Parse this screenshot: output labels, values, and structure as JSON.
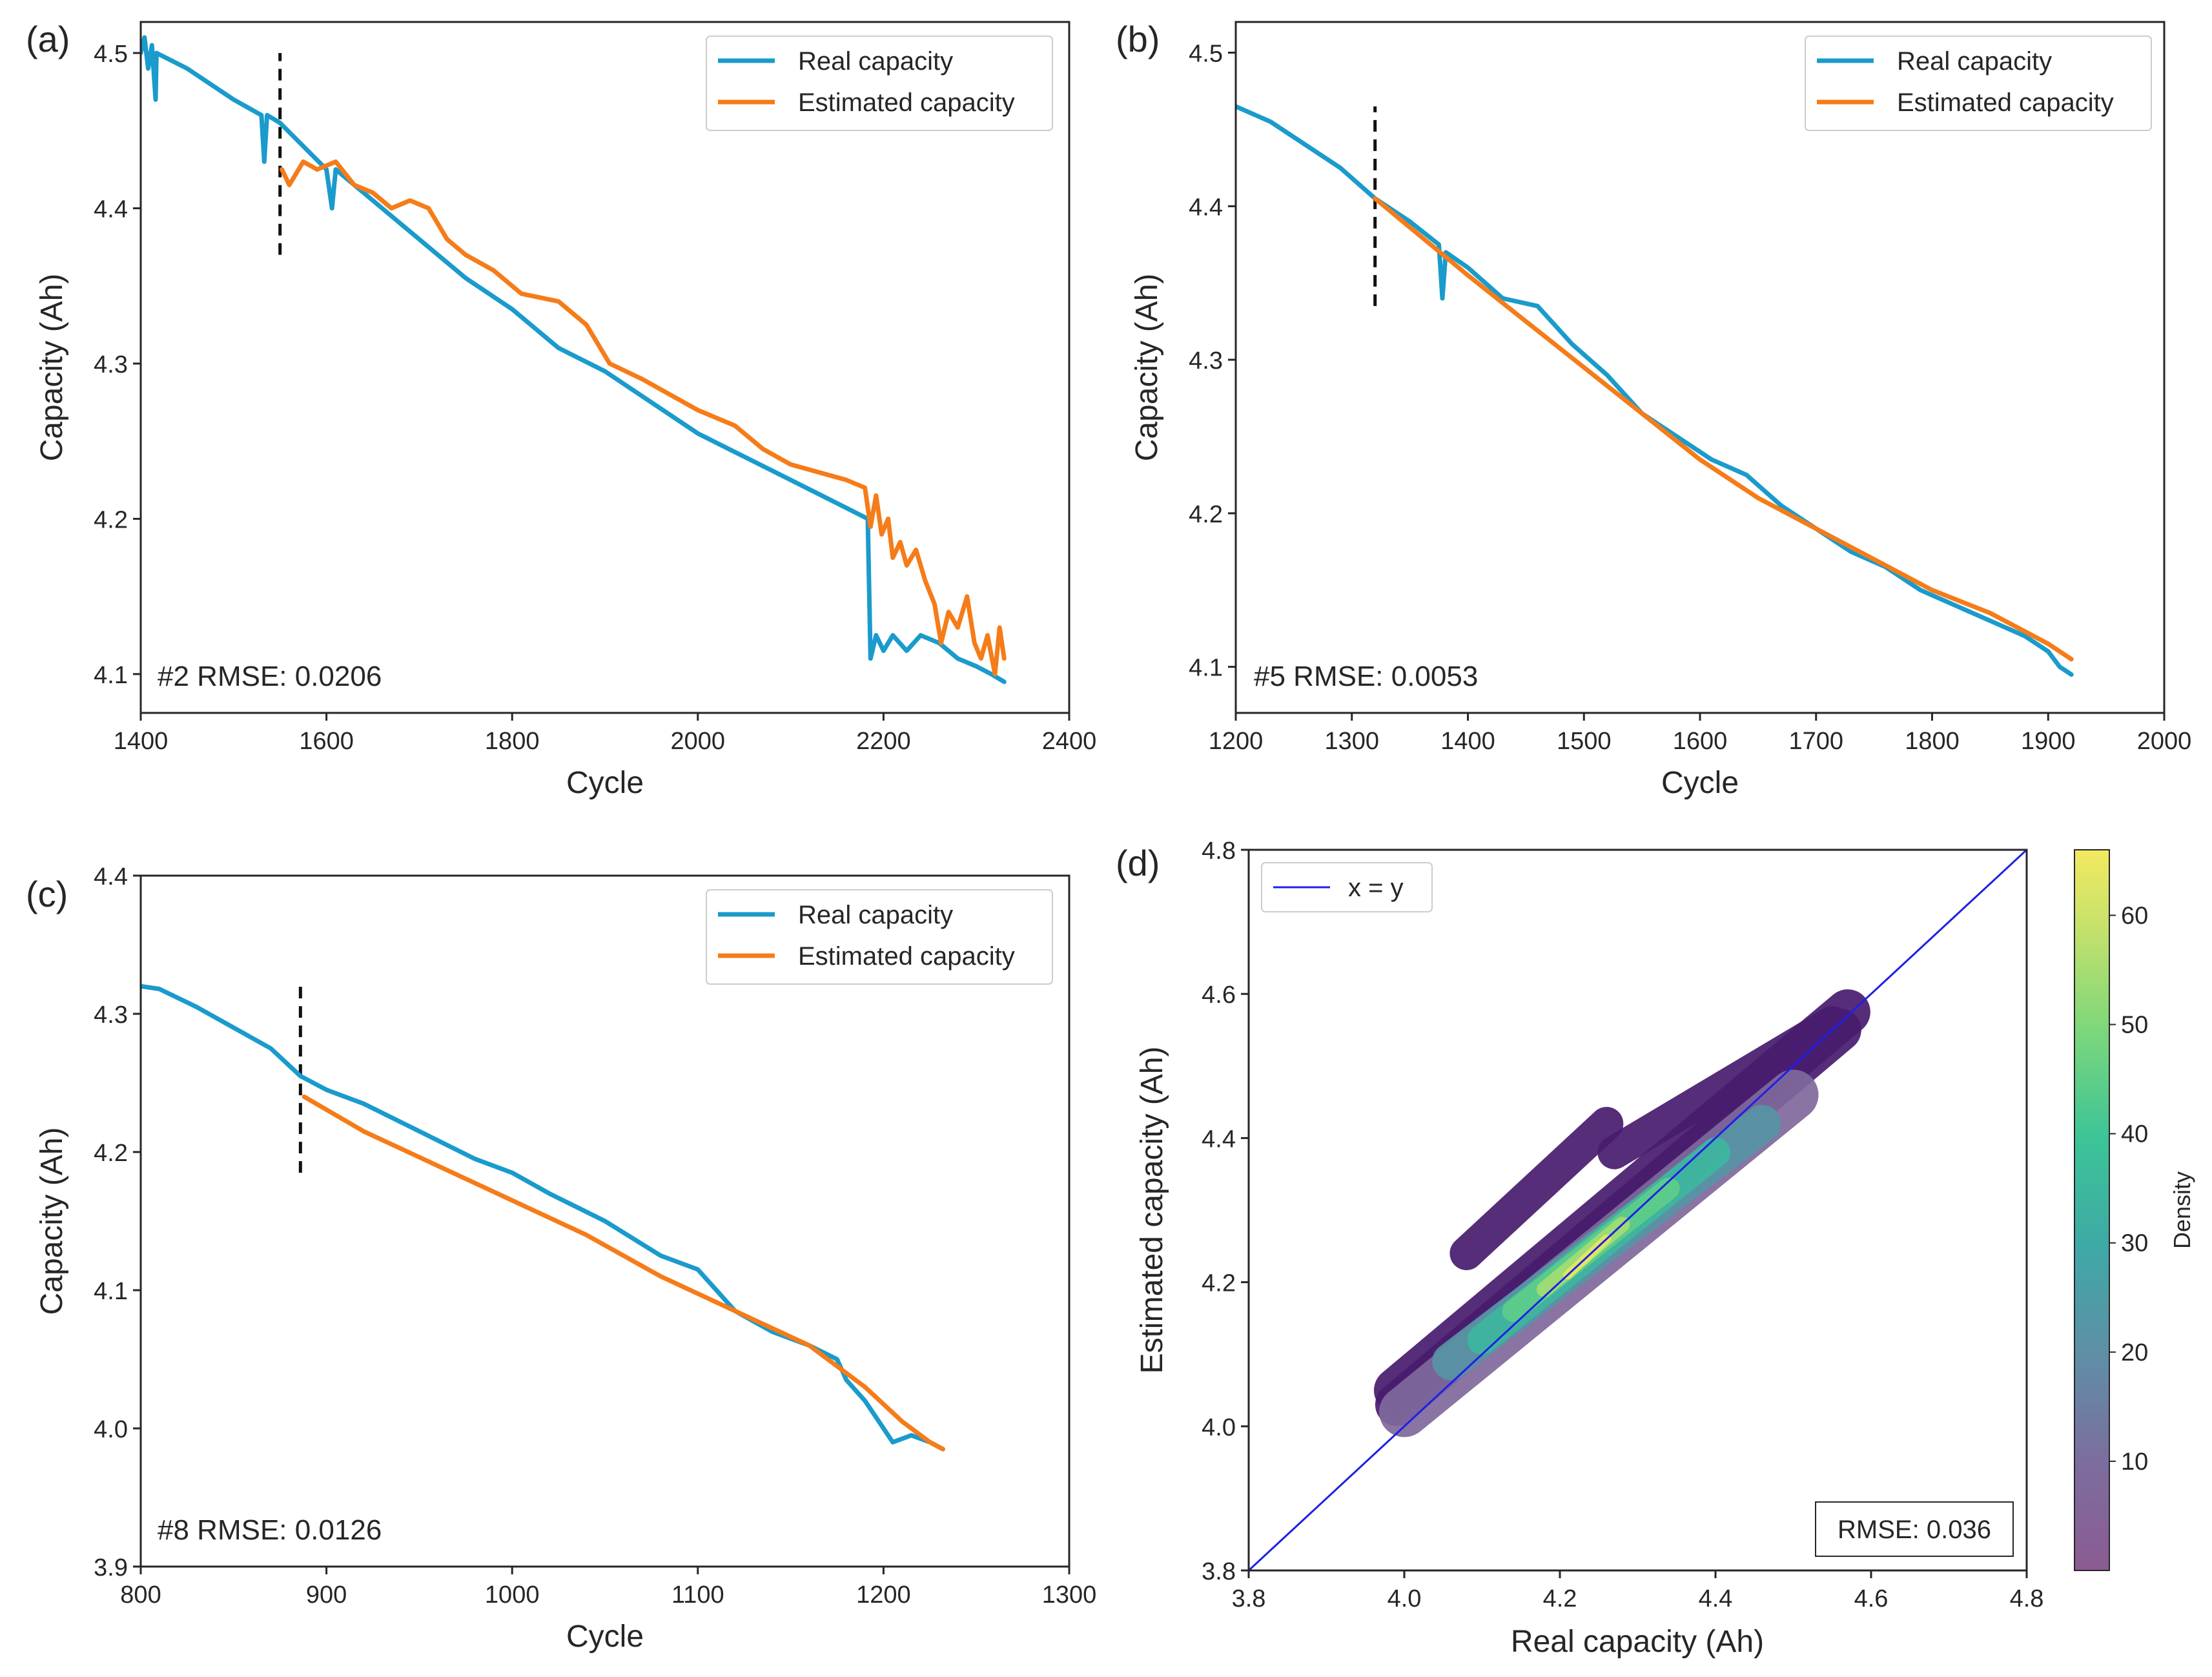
{
  "figure": {
    "panels": [
      {
        "id": "a",
        "label": "(a)"
      },
      {
        "id": "b",
        "label": "(b)"
      },
      {
        "id": "c",
        "label": "(c)"
      },
      {
        "id": "d",
        "label": "(d)"
      }
    ],
    "colors": {
      "real": "#1a9bcc",
      "estimated": "#f57c19",
      "identity": "#1f1fe6",
      "split": "#111111"
    }
  },
  "chart_data": [
    {
      "id": "a",
      "type": "line",
      "panel_label": "(a)",
      "xlabel": "Cycle",
      "ylabel": "Capacity (Ah)",
      "xlim": [
        1400,
        2400
      ],
      "ylim": [
        4.075,
        4.52
      ],
      "xticks": [
        1400,
        1600,
        1800,
        2000,
        2200,
        2400
      ],
      "yticks": [
        4.1,
        4.2,
        4.3,
        4.4,
        4.5
      ],
      "ytick_labels": [
        "4.1",
        "4.2",
        "4.3",
        "4.4",
        "4.5"
      ],
      "legend": [
        "Real capacity",
        "Estimated capacity"
      ],
      "annotation": "#2 RMSE: 0.0206",
      "split_cycle": 1550,
      "split_range": [
        4.37,
        4.5
      ],
      "series": [
        {
          "name": "Real capacity",
          "points": [
            [
              1400,
              4.5
            ],
            [
              1404,
              4.51
            ],
            [
              1408,
              4.49
            ],
            [
              1412,
              4.505
            ],
            [
              1416,
              4.47
            ],
            [
              1417,
              4.5
            ],
            [
              1450,
              4.49
            ],
            [
              1500,
              4.47
            ],
            [
              1530,
              4.46
            ],
            [
              1533,
              4.43
            ],
            [
              1536,
              4.46
            ],
            [
              1550,
              4.455
            ],
            [
              1600,
              4.425
            ],
            [
              1606,
              4.4
            ],
            [
              1610,
              4.425
            ],
            [
              1650,
              4.405
            ],
            [
              1700,
              4.38
            ],
            [
              1750,
              4.355
            ],
            [
              1800,
              4.335
            ],
            [
              1850,
              4.31
            ],
            [
              1900,
              4.295
            ],
            [
              1950,
              4.275
            ],
            [
              2000,
              4.255
            ],
            [
              2050,
              4.24
            ],
            [
              2100,
              4.225
            ],
            [
              2150,
              4.21
            ],
            [
              2183,
              4.2
            ],
            [
              2186,
              4.11
            ],
            [
              2192,
              4.125
            ],
            [
              2200,
              4.115
            ],
            [
              2210,
              4.125
            ],
            [
              2225,
              4.115
            ],
            [
              2240,
              4.125
            ],
            [
              2260,
              4.12
            ],
            [
              2280,
              4.11
            ],
            [
              2300,
              4.105
            ],
            [
              2316,
              4.1
            ],
            [
              2330,
              4.095
            ]
          ]
        },
        {
          "name": "Estimated capacity",
          "points": [
            [
              1552,
              4.425
            ],
            [
              1560,
              4.415
            ],
            [
              1575,
              4.43
            ],
            [
              1590,
              4.425
            ],
            [
              1610,
              4.43
            ],
            [
              1630,
              4.415
            ],
            [
              1650,
              4.41
            ],
            [
              1670,
              4.4
            ],
            [
              1690,
              4.405
            ],
            [
              1710,
              4.4
            ],
            [
              1730,
              4.38
            ],
            [
              1750,
              4.37
            ],
            [
              1780,
              4.36
            ],
            [
              1810,
              4.345
            ],
            [
              1850,
              4.34
            ],
            [
              1880,
              4.325
            ],
            [
              1905,
              4.3
            ],
            [
              1940,
              4.29
            ],
            [
              1970,
              4.28
            ],
            [
              2000,
              4.27
            ],
            [
              2040,
              4.26
            ],
            [
              2070,
              4.245
            ],
            [
              2100,
              4.235
            ],
            [
              2130,
              4.23
            ],
            [
              2160,
              4.225
            ],
            [
              2180,
              4.22
            ],
            [
              2186,
              4.195
            ],
            [
              2192,
              4.215
            ],
            [
              2198,
              4.19
            ],
            [
              2205,
              4.2
            ],
            [
              2210,
              4.175
            ],
            [
              2218,
              4.185
            ],
            [
              2225,
              4.17
            ],
            [
              2235,
              4.18
            ],
            [
              2245,
              4.16
            ],
            [
              2255,
              4.145
            ],
            [
              2262,
              4.12
            ],
            [
              2270,
              4.14
            ],
            [
              2280,
              4.13
            ],
            [
              2290,
              4.15
            ],
            [
              2298,
              4.12
            ],
            [
              2305,
              4.11
            ],
            [
              2312,
              4.125
            ],
            [
              2320,
              4.1
            ],
            [
              2325,
              4.13
            ],
            [
              2330,
              4.11
            ]
          ]
        }
      ]
    },
    {
      "id": "b",
      "type": "line",
      "panel_label": "(b)",
      "xlabel": "Cycle",
      "ylabel": "Capacity (Ah)",
      "xlim": [
        1200,
        2000
      ],
      "ylim": [
        4.07,
        4.52
      ],
      "xticks": [
        1200,
        1300,
        1400,
        1500,
        1600,
        1700,
        1800,
        1900,
        2000
      ],
      "yticks": [
        4.1,
        4.2,
        4.3,
        4.4,
        4.5
      ],
      "ytick_labels": [
        "4.1",
        "4.2",
        "4.3",
        "4.4",
        "4.5"
      ],
      "legend": [
        "Real capacity",
        "Estimated capacity"
      ],
      "annotation": "#5 RMSE: 0.0053",
      "split_cycle": 1320,
      "split_range": [
        4.335,
        4.465
      ],
      "series": [
        {
          "name": "Real capacity",
          "points": [
            [
              1200,
              4.465
            ],
            [
              1230,
              4.455
            ],
            [
              1260,
              4.44
            ],
            [
              1290,
              4.425
            ],
            [
              1320,
              4.405
            ],
            [
              1350,
              4.39
            ],
            [
              1375,
              4.375
            ],
            [
              1378,
              4.34
            ],
            [
              1381,
              4.37
            ],
            [
              1400,
              4.36
            ],
            [
              1430,
              4.34
            ],
            [
              1460,
              4.335
            ],
            [
              1490,
              4.31
            ],
            [
              1520,
              4.29
            ],
            [
              1550,
              4.265
            ],
            [
              1580,
              4.25
            ],
            [
              1610,
              4.235
            ],
            [
              1640,
              4.225
            ],
            [
              1670,
              4.205
            ],
            [
              1700,
              4.19
            ],
            [
              1730,
              4.175
            ],
            [
              1760,
              4.165
            ],
            [
              1790,
              4.15
            ],
            [
              1820,
              4.14
            ],
            [
              1850,
              4.13
            ],
            [
              1880,
              4.12
            ],
            [
              1900,
              4.11
            ],
            [
              1910,
              4.1
            ],
            [
              1920,
              4.095
            ]
          ]
        },
        {
          "name": "Estimated capacity",
          "points": [
            [
              1320,
              4.405
            ],
            [
              1360,
              4.38
            ],
            [
              1400,
              4.355
            ],
            [
              1450,
              4.325
            ],
            [
              1500,
              4.295
            ],
            [
              1550,
              4.265
            ],
            [
              1600,
              4.235
            ],
            [
              1650,
              4.21
            ],
            [
              1700,
              4.19
            ],
            [
              1750,
              4.17
            ],
            [
              1800,
              4.15
            ],
            [
              1850,
              4.135
            ],
            [
              1900,
              4.115
            ],
            [
              1920,
              4.105
            ]
          ]
        }
      ]
    },
    {
      "id": "c",
      "type": "line",
      "panel_label": "(c)",
      "xlabel": "Cycle",
      "ylabel": "Capacity (Ah)",
      "xlim": [
        800,
        1300
      ],
      "ylim": [
        3.9,
        4.4
      ],
      "xticks": [
        800,
        900,
        1000,
        1100,
        1200,
        1300
      ],
      "yticks": [
        3.9,
        4.0,
        4.1,
        4.2,
        4.3,
        4.4
      ],
      "ytick_labels": [
        "3.9",
        "4.0",
        "4.1",
        "4.2",
        "4.3",
        "4.4"
      ],
      "legend": [
        "Real capacity",
        "Estimated capacity"
      ],
      "annotation": "#8 RMSE: 0.0126",
      "split_cycle": 886,
      "split_range": [
        4.185,
        4.32
      ],
      "series": [
        {
          "name": "Real capacity",
          "points": [
            [
              800,
              4.32
            ],
            [
              810,
              4.318
            ],
            [
              830,
              4.305
            ],
            [
              850,
              4.29
            ],
            [
              870,
              4.275
            ],
            [
              886,
              4.255
            ],
            [
              900,
              4.245
            ],
            [
              920,
              4.235
            ],
            [
              950,
              4.215
            ],
            [
              980,
              4.195
            ],
            [
              1000,
              4.185
            ],
            [
              1020,
              4.17
            ],
            [
              1050,
              4.15
            ],
            [
              1080,
              4.125
            ],
            [
              1100,
              4.115
            ],
            [
              1110,
              4.1
            ],
            [
              1120,
              4.085
            ],
            [
              1140,
              4.07
            ],
            [
              1160,
              4.06
            ],
            [
              1175,
              4.05
            ],
            [
              1180,
              4.035
            ],
            [
              1190,
              4.02
            ],
            [
              1195,
              4.01
            ],
            [
              1200,
              4.0
            ],
            [
              1205,
              3.99
            ],
            [
              1215,
              3.995
            ],
            [
              1225,
              3.99
            ],
            [
              1232,
              3.985
            ]
          ]
        },
        {
          "name": "Estimated capacity",
          "points": [
            [
              888,
              4.24
            ],
            [
              920,
              4.215
            ],
            [
              960,
              4.19
            ],
            [
              1000,
              4.165
            ],
            [
              1040,
              4.14
            ],
            [
              1080,
              4.11
            ],
            [
              1120,
              4.085
            ],
            [
              1160,
              4.06
            ],
            [
              1190,
              4.03
            ],
            [
              1210,
              4.005
            ],
            [
              1225,
              3.99
            ],
            [
              1232,
              3.985
            ]
          ]
        }
      ]
    },
    {
      "id": "d",
      "type": "scatter",
      "panel_label": "(d)",
      "xlabel": "Real capacity (Ah)",
      "ylabel": "Estimated capacity (Ah)",
      "xlim": [
        3.8,
        4.8
      ],
      "ylim": [
        3.8,
        4.8
      ],
      "xticks": [
        3.8,
        4.0,
        4.2,
        4.4,
        4.6,
        4.8
      ],
      "yticks": [
        3.8,
        4.0,
        4.2,
        4.4,
        4.6,
        4.8
      ],
      "xtick_labels": [
        "3.8",
        "4.0",
        "4.2",
        "4.4",
        "4.6",
        "4.8"
      ],
      "ytick_labels": [
        "3.8",
        "4.0",
        "4.2",
        "4.4",
        "4.6",
        "4.8"
      ],
      "legend": [
        "x = y"
      ],
      "annotation": "RMSE: 0.036",
      "colorbar": {
        "label": "Density",
        "range": [
          0,
          66
        ],
        "ticks": [
          10,
          20,
          30,
          40,
          50,
          60
        ],
        "tick_labels": [
          "10",
          "20",
          "30",
          "40",
          "50",
          "60"
        ]
      },
      "density_bands": [
        {
          "x0": 3.99,
          "y0": 4.05,
          "x1": 4.57,
          "y1": 4.575,
          "density": 3
        },
        {
          "x0": 3.99,
          "y0": 4.03,
          "x1": 4.56,
          "y1": 4.55,
          "density": 4
        },
        {
          "x0": 4.0,
          "y0": 4.02,
          "x1": 4.5,
          "y1": 4.46,
          "density": 8
        },
        {
          "x0": 4.06,
          "y0": 4.09,
          "x1": 4.46,
          "y1": 4.42,
          "density": 22
        },
        {
          "x0": 4.1,
          "y0": 4.12,
          "x1": 4.4,
          "y1": 4.38,
          "density": 35
        },
        {
          "x0": 4.14,
          "y0": 4.16,
          "x1": 4.34,
          "y1": 4.33,
          "density": 45
        },
        {
          "x0": 4.18,
          "y0": 4.19,
          "x1": 4.28,
          "y1": 4.28,
          "density": 55
        },
        {
          "x0": 4.21,
          "y0": 4.21,
          "x1": 4.26,
          "y1": 4.26,
          "density": 64
        }
      ],
      "density_islands": [
        {
          "x0": 4.08,
          "y0": 4.24,
          "x1": 4.26,
          "y1": 4.42,
          "density": 2
        },
        {
          "x0": 4.27,
          "y0": 4.38,
          "x1": 4.55,
          "y1": 4.56,
          "density": 2
        }
      ]
    }
  ]
}
